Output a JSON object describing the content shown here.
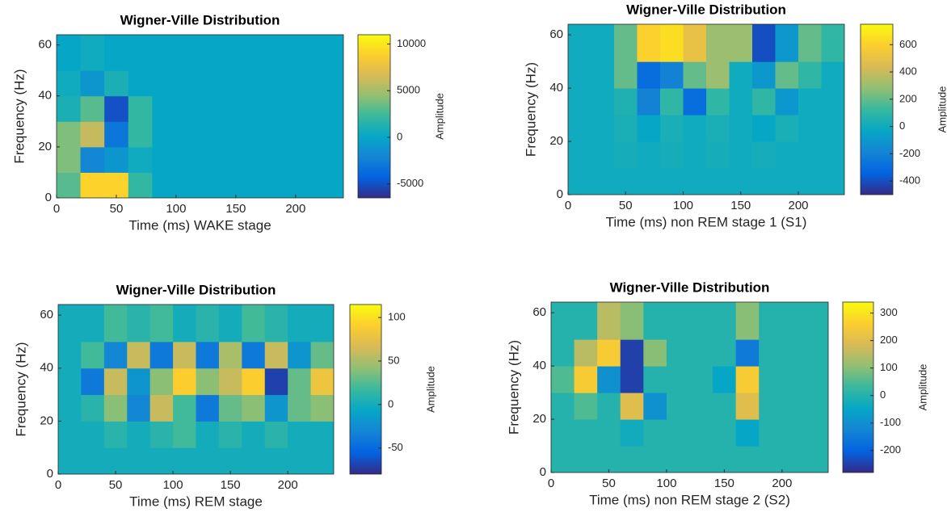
{
  "chart_data": [
    {
      "type": "heatmap",
      "title": "Wigner-Ville Distribution",
      "xlabel": "Time (ms)  WAKE stage",
      "ylabel": "Frequency (Hz)",
      "colorbar_label": "Amplitude",
      "colormap": "parula",
      "x": [
        10,
        30,
        50,
        70,
        90,
        110,
        130,
        150,
        170,
        190,
        210,
        230
      ],
      "y": [
        5,
        15,
        25,
        35,
        45,
        55
      ],
      "z": [
        [
          3000,
          9000,
          9000,
          2000,
          0,
          0,
          0,
          0,
          0,
          0,
          0,
          0
        ],
        [
          4000,
          -2000,
          -1000,
          500,
          0,
          0,
          0,
          0,
          0,
          0,
          0,
          0
        ],
        [
          4000,
          6000,
          -3000,
          2000,
          0,
          0,
          0,
          0,
          0,
          0,
          0,
          0
        ],
        [
          1000,
          3000,
          -5000,
          2000,
          0,
          0,
          0,
          0,
          0,
          0,
          0,
          0
        ],
        [
          500,
          -1000,
          1000,
          0,
          0,
          0,
          0,
          0,
          0,
          0,
          0,
          0
        ],
        [
          0,
          500,
          0,
          0,
          0,
          0,
          0,
          0,
          0,
          0,
          0,
          0
        ]
      ],
      "xlim": [
        0,
        240
      ],
      "ylim": [
        0,
        64
      ],
      "xticks": [
        0,
        50,
        100,
        150,
        200
      ],
      "yticks": [
        0,
        20,
        40,
        60
      ],
      "clim": [
        -6500,
        11000
      ],
      "cticks": [
        -5000,
        0,
        5000,
        10000
      ]
    },
    {
      "type": "heatmap",
      "title": "Wigner-Ville Distribution",
      "xlabel": "Time (ms)  non REM stage 1 (S1)",
      "ylabel": "Frequency (Hz)",
      "colorbar_label": "Amplitude",
      "colormap": "parula",
      "x": [
        10,
        30,
        50,
        70,
        90,
        110,
        130,
        150,
        170,
        190,
        210,
        230
      ],
      "y": [
        5,
        15,
        25,
        35,
        45,
        55
      ],
      "z": [
        [
          0,
          0,
          0,
          0,
          0,
          0,
          0,
          0,
          0,
          0,
          0,
          0
        ],
        [
          0,
          0,
          20,
          0,
          20,
          0,
          20,
          0,
          20,
          0,
          0,
          0
        ],
        [
          0,
          0,
          30,
          -30,
          30,
          0,
          30,
          0,
          -30,
          30,
          0,
          0
        ],
        [
          0,
          0,
          50,
          -200,
          100,
          -300,
          100,
          0,
          100,
          -100,
          0,
          0
        ],
        [
          0,
          0,
          200,
          -300,
          -200,
          200,
          300,
          0,
          -100,
          200,
          100,
          0
        ],
        [
          0,
          0,
          200,
          600,
          650,
          500,
          300,
          300,
          -400,
          -100,
          200,
          100
        ]
      ],
      "xlim": [
        0,
        240
      ],
      "ylim": [
        0,
        64
      ],
      "xticks": [
        0,
        50,
        100,
        150,
        200
      ],
      "yticks": [
        0,
        20,
        40,
        60
      ],
      "clim": [
        -500,
        750
      ],
      "cticks": [
        -400,
        -200,
        0,
        200,
        400,
        600
      ]
    },
    {
      "type": "heatmap",
      "title": "Wigner-Ville Distribution",
      "xlabel": "Time (ms)  REM stage",
      "ylabel": "Frequency (Hz)",
      "colorbar_label": "Amplitude",
      "colormap": "parula",
      "x": [
        10,
        30,
        50,
        70,
        90,
        110,
        130,
        150,
        170,
        190,
        210,
        230
      ],
      "y": [
        5,
        15,
        25,
        35,
        45,
        55
      ],
      "z": [
        [
          0,
          0,
          0,
          0,
          0,
          0,
          0,
          0,
          0,
          0,
          0,
          0
        ],
        [
          0,
          0,
          10,
          0,
          10,
          20,
          0,
          10,
          0,
          10,
          0,
          0
        ],
        [
          0,
          10,
          40,
          -30,
          60,
          20,
          -40,
          30,
          40,
          -20,
          30,
          40
        ],
        [
          0,
          -40,
          60,
          -20,
          40,
          90,
          40,
          60,
          90,
          -70,
          30,
          80
        ],
        [
          0,
          20,
          -30,
          60,
          -40,
          60,
          -40,
          50,
          -40,
          60,
          -20,
          30
        ],
        [
          0,
          0,
          20,
          10,
          20,
          0,
          10,
          0,
          20,
          10,
          0,
          0
        ]
      ],
      "xlim": [
        0,
        240
      ],
      "ylim": [
        0,
        64
      ],
      "xticks": [
        0,
        50,
        100,
        150,
        200
      ],
      "yticks": [
        0,
        20,
        40,
        60
      ],
      "clim": [
        -80,
        115
      ],
      "cticks": [
        -50,
        0,
        50,
        100
      ]
    },
    {
      "type": "heatmap",
      "title": "Wigner-Ville Distribution",
      "xlabel": "Time (ms)  non REM stage 2 (S2)",
      "ylabel": "Frequency (Hz)",
      "colorbar_label": "Amplitude",
      "colormap": "parula",
      "x": [
        10,
        30,
        50,
        70,
        90,
        110,
        130,
        150,
        170,
        190,
        210,
        230
      ],
      "y": [
        5,
        15,
        25,
        35,
        45,
        55
      ],
      "z": [
        [
          0,
          0,
          0,
          0,
          0,
          0,
          0,
          0,
          0,
          0,
          0,
          0
        ],
        [
          0,
          0,
          0,
          -30,
          0,
          0,
          0,
          0,
          -50,
          0,
          0,
          0
        ],
        [
          0,
          50,
          0,
          200,
          -100,
          0,
          0,
          0,
          200,
          0,
          0,
          0
        ],
        [
          50,
          250,
          -100,
          -250,
          0,
          0,
          0,
          -50,
          250,
          0,
          0,
          0
        ],
        [
          0,
          150,
          250,
          -250,
          100,
          0,
          0,
          0,
          -150,
          0,
          0,
          0
        ],
        [
          0,
          0,
          150,
          100,
          0,
          0,
          0,
          0,
          100,
          0,
          0,
          0
        ]
      ],
      "xlim": [
        0,
        240
      ],
      "ylim": [
        0,
        64
      ],
      "xticks": [
        0,
        50,
        100,
        150,
        200
      ],
      "yticks": [
        0,
        20,
        40,
        60
      ],
      "clim": [
        -280,
        340
      ],
      "cticks": [
        -200,
        -100,
        0,
        100,
        200,
        300
      ]
    }
  ]
}
